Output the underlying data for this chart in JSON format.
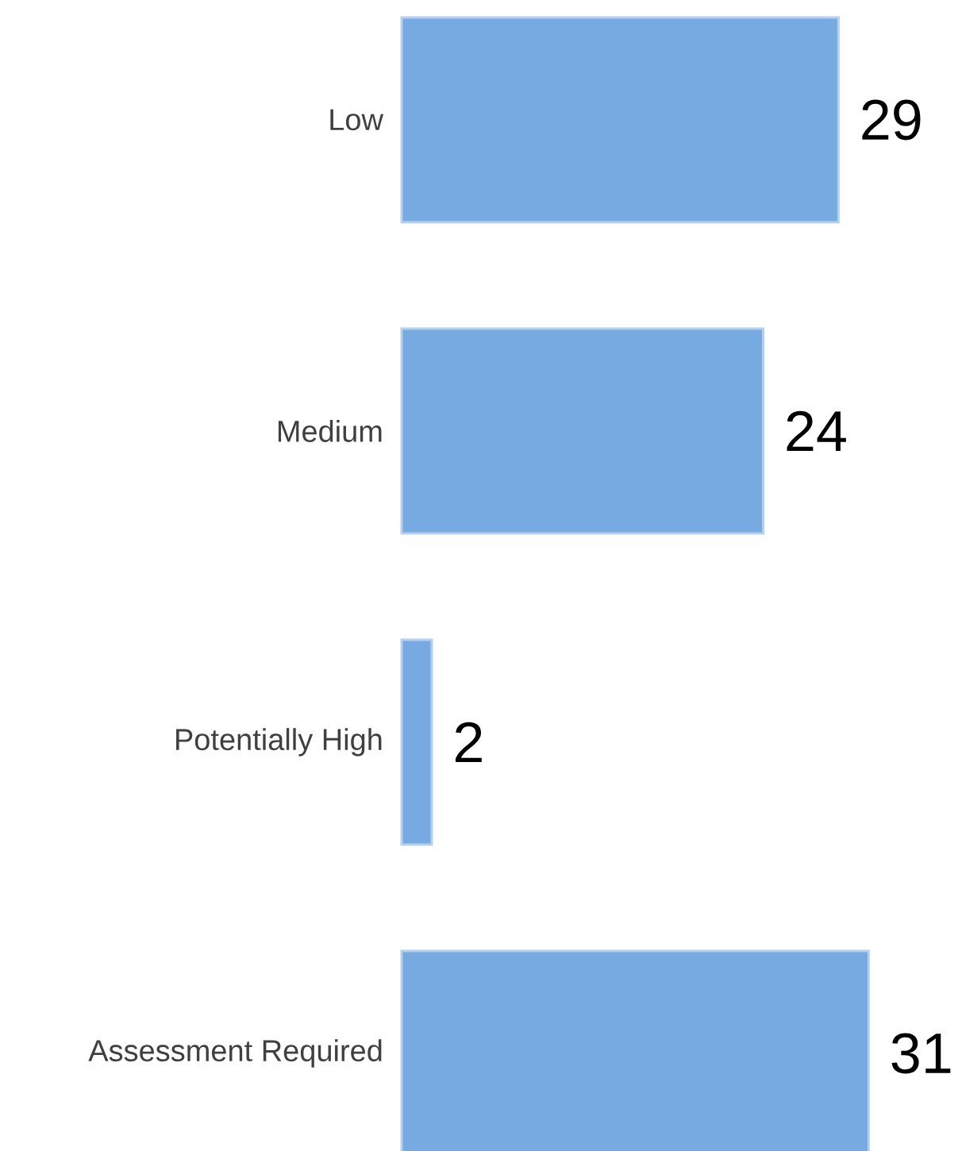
{
  "chart_data": {
    "type": "bar",
    "orientation": "horizontal",
    "categories": [
      "Low",
      "Medium",
      "Potentially High",
      "Assessment Required"
    ],
    "values": [
      29,
      24,
      2,
      31
    ],
    "color": "#77aae0",
    "data_labels": true
  }
}
